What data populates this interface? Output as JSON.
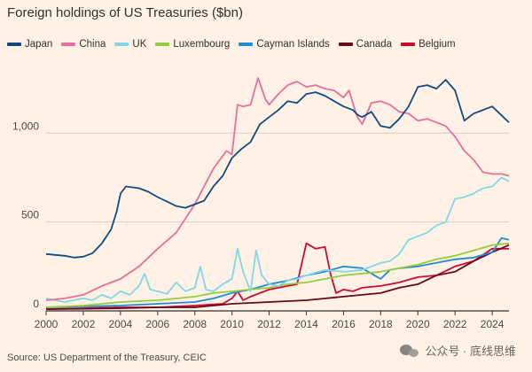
{
  "chart_data": {
    "type": "line",
    "title": "Foreign holdings of US Treasuries ($bn)",
    "xlabel": "",
    "ylabel": "",
    "xlim": [
      2000,
      2024.9
    ],
    "ylim": [
      0,
      1400
    ],
    "x_ticks": [
      2000,
      2002,
      2004,
      2006,
      2008,
      2010,
      2012,
      2014,
      2016,
      2018,
      2020,
      2022,
      2024
    ],
    "y_ticks": [
      0,
      500,
      1000
    ],
    "y_tick_labels": [
      "0",
      "500",
      "1,000"
    ],
    "grid": "horizontal",
    "legend_position": "top-left",
    "series": [
      {
        "name": "Japan",
        "color": "#0f4c81",
        "points": [
          [
            2000,
            320
          ],
          [
            2001,
            310
          ],
          [
            2001.5,
            300
          ],
          [
            2002,
            305
          ],
          [
            2002.5,
            325
          ],
          [
            2003,
            380
          ],
          [
            2003.5,
            460
          ],
          [
            2003.8,
            560
          ],
          [
            2004,
            660
          ],
          [
            2004.3,
            700
          ],
          [
            2005,
            690
          ],
          [
            2005.5,
            670
          ],
          [
            2006,
            640
          ],
          [
            2007,
            590
          ],
          [
            2007.5,
            580
          ],
          [
            2008,
            600
          ],
          [
            2008.5,
            620
          ],
          [
            2009,
            700
          ],
          [
            2009.5,
            760
          ],
          [
            2010,
            860
          ],
          [
            2010.5,
            910
          ],
          [
            2011,
            950
          ],
          [
            2011.5,
            1050
          ],
          [
            2012,
            1090
          ],
          [
            2012.5,
            1130
          ],
          [
            2013,
            1180
          ],
          [
            2013.5,
            1170
          ],
          [
            2014,
            1220
          ],
          [
            2014.5,
            1230
          ],
          [
            2015,
            1210
          ],
          [
            2015.5,
            1180
          ],
          [
            2016,
            1150
          ],
          [
            2016.5,
            1130
          ],
          [
            2016.8,
            1100
          ],
          [
            2017,
            1090
          ],
          [
            2017.5,
            1120
          ],
          [
            2018,
            1040
          ],
          [
            2018.5,
            1030
          ],
          [
            2019,
            1080
          ],
          [
            2019.5,
            1150
          ],
          [
            2020,
            1260
          ],
          [
            2020.5,
            1270
          ],
          [
            2021,
            1250
          ],
          [
            2021.5,
            1300
          ],
          [
            2022,
            1240
          ],
          [
            2022.5,
            1070
          ],
          [
            2023,
            1110
          ],
          [
            2023.5,
            1130
          ],
          [
            2024,
            1150
          ],
          [
            2024.5,
            1100
          ],
          [
            2024.9,
            1060
          ]
        ]
      },
      {
        "name": "China",
        "color": "#e86f99",
        "points": [
          [
            2000,
            60
          ],
          [
            2001,
            70
          ],
          [
            2002,
            90
          ],
          [
            2003,
            140
          ],
          [
            2004,
            180
          ],
          [
            2005,
            250
          ],
          [
            2006,
            350
          ],
          [
            2007,
            440
          ],
          [
            2008,
            600
          ],
          [
            2008.5,
            700
          ],
          [
            2009,
            800
          ],
          [
            2009.7,
            900
          ],
          [
            2010,
            880
          ],
          [
            2010.3,
            1160
          ],
          [
            2010.6,
            1150
          ],
          [
            2011,
            1160
          ],
          [
            2011.4,
            1310
          ],
          [
            2011.8,
            1190
          ],
          [
            2012,
            1160
          ],
          [
            2012.5,
            1220
          ],
          [
            2013,
            1270
          ],
          [
            2013.5,
            1290
          ],
          [
            2014,
            1260
          ],
          [
            2014.5,
            1270
          ],
          [
            2015,
            1250
          ],
          [
            2015.5,
            1240
          ],
          [
            2016,
            1200
          ],
          [
            2016.3,
            1240
          ],
          [
            2016.7,
            1100
          ],
          [
            2017,
            1050
          ],
          [
            2017.5,
            1170
          ],
          [
            2018,
            1180
          ],
          [
            2018.5,
            1160
          ],
          [
            2019,
            1120
          ],
          [
            2019.5,
            1110
          ],
          [
            2020,
            1070
          ],
          [
            2020.5,
            1080
          ],
          [
            2021,
            1060
          ],
          [
            2021.5,
            1040
          ],
          [
            2022,
            980
          ],
          [
            2022.5,
            900
          ],
          [
            2023,
            850
          ],
          [
            2023.5,
            780
          ],
          [
            2024,
            770
          ],
          [
            2024.5,
            770
          ],
          [
            2024.9,
            760
          ]
        ]
      },
      {
        "name": "UK",
        "color": "#7fd8e3",
        "points": [
          [
            2000,
            70
          ],
          [
            2001,
            50
          ],
          [
            2002,
            70
          ],
          [
            2002.5,
            60
          ],
          [
            2003,
            90
          ],
          [
            2003.5,
            70
          ],
          [
            2004,
            110
          ],
          [
            2004.5,
            90
          ],
          [
            2005,
            140
          ],
          [
            2005.3,
            210
          ],
          [
            2005.6,
            120
          ],
          [
            2006,
            110
          ],
          [
            2006.5,
            95
          ],
          [
            2007,
            160
          ],
          [
            2007.5,
            110
          ],
          [
            2008,
            130
          ],
          [
            2008.3,
            250
          ],
          [
            2008.6,
            120
          ],
          [
            2009,
            110
          ],
          [
            2009.5,
            150
          ],
          [
            2010,
            180
          ],
          [
            2010.3,
            350
          ],
          [
            2010.6,
            220
          ],
          [
            2011,
            110
          ],
          [
            2011.3,
            340
          ],
          [
            2011.6,
            200
          ],
          [
            2012,
            150
          ],
          [
            2012.5,
            140
          ],
          [
            2013,
            170
          ],
          [
            2013.5,
            180
          ],
          [
            2014,
            200
          ],
          [
            2015,
            230
          ],
          [
            2016,
            220
          ],
          [
            2017,
            230
          ],
          [
            2017.5,
            250
          ],
          [
            2018,
            270
          ],
          [
            2018.5,
            280
          ],
          [
            2019,
            320
          ],
          [
            2019.5,
            400
          ],
          [
            2020,
            420
          ],
          [
            2020.5,
            440
          ],
          [
            2021,
            480
          ],
          [
            2021.5,
            500
          ],
          [
            2022,
            630
          ],
          [
            2022.5,
            640
          ],
          [
            2023,
            660
          ],
          [
            2023.5,
            690
          ],
          [
            2024,
            700
          ],
          [
            2024.5,
            750
          ],
          [
            2024.9,
            730
          ]
        ]
      },
      {
        "name": "Luxembourg",
        "color": "#96cc39",
        "points": [
          [
            2000,
            20
          ],
          [
            2002,
            30
          ],
          [
            2004,
            50
          ],
          [
            2006,
            60
          ],
          [
            2008,
            80
          ],
          [
            2009,
            100
          ],
          [
            2010,
            110
          ],
          [
            2011,
            120
          ],
          [
            2012,
            130
          ],
          [
            2013,
            150
          ],
          [
            2014,
            160
          ],
          [
            2015,
            180
          ],
          [
            2016,
            200
          ],
          [
            2017,
            210
          ],
          [
            2018,
            220
          ],
          [
            2019,
            240
          ],
          [
            2020,
            260
          ],
          [
            2021,
            290
          ],
          [
            2022,
            310
          ],
          [
            2023,
            340
          ],
          [
            2024,
            370
          ],
          [
            2024.9,
            380
          ]
        ]
      },
      {
        "name": "Cayman Islands",
        "color": "#1f8dd6",
        "points": [
          [
            2000,
            20
          ],
          [
            2002,
            25
          ],
          [
            2004,
            30
          ],
          [
            2006,
            40
          ],
          [
            2008,
            50
          ],
          [
            2009,
            70
          ],
          [
            2010,
            100
          ],
          [
            2011,
            120
          ],
          [
            2012,
            150
          ],
          [
            2013,
            170
          ],
          [
            2014,
            200
          ],
          [
            2015,
            220
          ],
          [
            2016,
            250
          ],
          [
            2017,
            240
          ],
          [
            2018,
            180
          ],
          [
            2018.5,
            230
          ],
          [
            2019,
            240
          ],
          [
            2020,
            250
          ],
          [
            2021,
            270
          ],
          [
            2022,
            290
          ],
          [
            2023,
            300
          ],
          [
            2024,
            330
          ],
          [
            2024.5,
            410
          ],
          [
            2024.9,
            400
          ]
        ]
      },
      {
        "name": "Canada",
        "color": "#66091d",
        "points": [
          [
            2000,
            10
          ],
          [
            2002,
            12
          ],
          [
            2004,
            15
          ],
          [
            2006,
            20
          ],
          [
            2008,
            20
          ],
          [
            2010,
            40
          ],
          [
            2012,
            50
          ],
          [
            2014,
            60
          ],
          [
            2016,
            80
          ],
          [
            2018,
            100
          ],
          [
            2019,
            130
          ],
          [
            2020,
            150
          ],
          [
            2021,
            200
          ],
          [
            2022,
            220
          ],
          [
            2023,
            280
          ],
          [
            2024,
            330
          ],
          [
            2024.9,
            370
          ]
        ]
      },
      {
        "name": "Belgium",
        "color": "#cc0a32",
        "points": [
          [
            2000,
            10
          ],
          [
            2002,
            15
          ],
          [
            2004,
            20
          ],
          [
            2006,
            20
          ],
          [
            2008,
            30
          ],
          [
            2009.5,
            40
          ],
          [
            2010,
            70
          ],
          [
            2010.3,
            110
          ],
          [
            2010.6,
            60
          ],
          [
            2011,
            80
          ],
          [
            2012,
            120
          ],
          [
            2013,
            140
          ],
          [
            2013.5,
            150
          ],
          [
            2014,
            380
          ],
          [
            2014.5,
            350
          ],
          [
            2015,
            360
          ],
          [
            2015.3,
            210
          ],
          [
            2015.6,
            100
          ],
          [
            2016,
            120
          ],
          [
            2016.5,
            110
          ],
          [
            2017,
            130
          ],
          [
            2018,
            140
          ],
          [
            2019,
            160
          ],
          [
            2020,
            190
          ],
          [
            2021,
            200
          ],
          [
            2022,
            250
          ],
          [
            2023,
            280
          ],
          [
            2024,
            350
          ],
          [
            2024.9,
            350
          ]
        ]
      }
    ]
  },
  "source": "Source: US Department of the Treasury, CEIC",
  "watermark": "公众号 · 底线思维"
}
